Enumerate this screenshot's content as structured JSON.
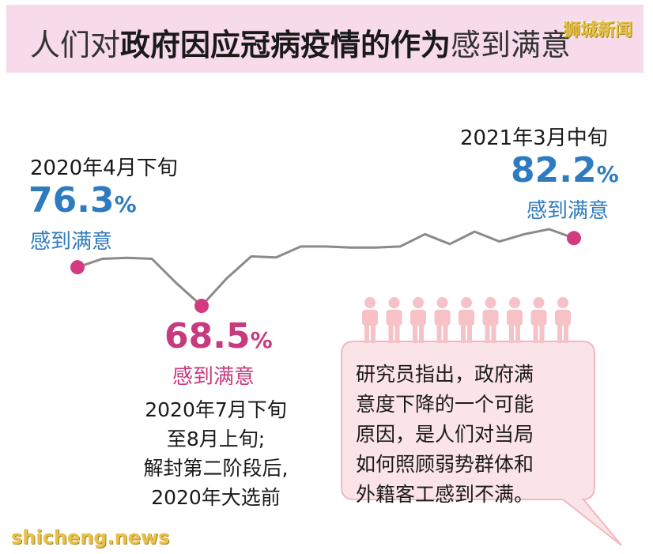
{
  "header": {
    "title_part1": "人们对",
    "title_part2": "政府因应冠病疫情的作为",
    "title_part3": "感到满意",
    "logo": "狮城新闻"
  },
  "chart_data": {
    "type": "line",
    "title": "人们对政府因应冠病疫情的作为感到满意",
    "series": [
      {
        "values": [
          76.3,
          78.0,
          78.2,
          78.0,
          73.0,
          68.5,
          74.0,
          78.5,
          78.3,
          80.5,
          80.5,
          80.3,
          80.3,
          80.5,
          83.0,
          81.0,
          83.5,
          81.5,
          83.0,
          84.0,
          82.2
        ]
      }
    ],
    "highlight_points": [
      0,
      5,
      20
    ],
    "colors": {
      "line": "#8a8a8a",
      "point": "#d33a80"
    }
  },
  "callouts": {
    "start": {
      "date": "2020年4月下旬",
      "value": "76.3",
      "unit": "%",
      "caption": "感到满意"
    },
    "low": {
      "value": "68.5",
      "unit": "%",
      "caption": "感到满意",
      "note_lines": [
        "2020年7月下旬",
        "至8月上旬;",
        "解封第二阶段后,",
        "2020年大选前"
      ]
    },
    "end": {
      "date": "2021年3月中旬",
      "value": "82.2",
      "unit": "%",
      "caption": "感到满意"
    }
  },
  "bubble": {
    "lines": [
      "研究员指出，政府满",
      "意度下降的一个可能",
      "原因，是人们对当局",
      "如何照顾弱势群体和",
      "外籍客工感到不满。"
    ],
    "people_count": 9,
    "colors": {
      "fill": "#fbe4e7",
      "stroke": "#f2b7bf",
      "people": "#f6c1c7"
    }
  },
  "watermark": "shicheng.news"
}
